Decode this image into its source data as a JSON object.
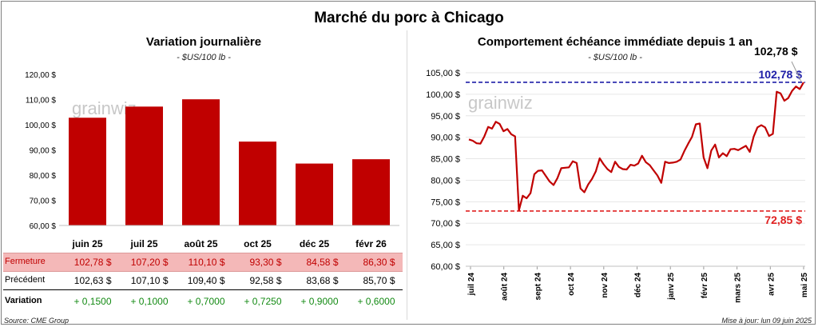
{
  "title": "Marché du porc à Chicago",
  "left": {
    "title": "Variation  journalière",
    "subtitle": "- $US/100 lb -",
    "watermark": "grainwiz",
    "chart_data": {
      "type": "bar",
      "categories": [
        "juin 25",
        "juil 25",
        "août 25",
        "oct 25",
        "déc 25",
        "févr 26"
      ],
      "values": [
        102.78,
        107.2,
        110.1,
        93.3,
        84.58,
        86.3
      ],
      "ylim": [
        60,
        120
      ],
      "yticks": [
        "60,00 $",
        "70,00 $",
        "80,00 $",
        "90,00 $",
        "100,00 $",
        "110,00 $",
        "120,00 $"
      ],
      "color": "#c00000"
    },
    "table": {
      "rows": [
        {
          "label": "Fermeture",
          "values": [
            "102,78  $",
            "107,20  $",
            "110,10  $",
            "93,30  $",
            "84,58  $",
            "86,30  $"
          ]
        },
        {
          "label": "Précédent",
          "values": [
            "102,63  $",
            "107,10  $",
            "109,40  $",
            "92,58  $",
            "83,68  $",
            "85,70  $"
          ]
        },
        {
          "label": "Variation",
          "values": [
            "+ 0,1500",
            "+ 0,1000",
            "+ 0,7000",
            "+ 0,7250",
            "+ 0,9000",
            "+ 0,6000"
          ]
        }
      ]
    }
  },
  "right": {
    "title": "Comportement  échéance immédiate depuis 1 an",
    "subtitle": "- $US/100 lb -",
    "watermark": "grainwiz",
    "last_value_label": "102,78 $",
    "chart_data": {
      "type": "line",
      "ylim": [
        60,
        105
      ],
      "yticks": [
        "60,00 $",
        "65,00 $",
        "70,00 $",
        "75,00 $",
        "80,00 $",
        "85,00 $",
        "90,00 $",
        "95,00 $",
        "100,00 $",
        "105,00 $"
      ],
      "xticks": [
        "juil 24",
        "août 24",
        "sept 24",
        "oct 24",
        "nov 24",
        "déc 24",
        "janv 25",
        "févr 25",
        "mars 25",
        "avr 25",
        "mai 25"
      ],
      "series": [
        {
          "color": "#c00000",
          "values": [
            89.5,
            89.2,
            88.6,
            88.5,
            90.2,
            92.4,
            92.0,
            93.6,
            93.1,
            91.4,
            91.9,
            90.7,
            90.2,
            73.0,
            76.4,
            75.8,
            77.0,
            81.4,
            82.2,
            82.3,
            81.0,
            79.7,
            78.9,
            80.5,
            82.8,
            82.9,
            83.0,
            84.4,
            84.0,
            78.1,
            77.2,
            79.0,
            80.3,
            82.1,
            85.1,
            83.7,
            82.6,
            81.9,
            84.3,
            83.1,
            82.6,
            82.5,
            83.6,
            83.4,
            83.9,
            85.7,
            84.2,
            83.5,
            82.3,
            81.1,
            79.4,
            84.3,
            84.0,
            84.1,
            84.3,
            84.8,
            86.8,
            88.5,
            90.1,
            93.0,
            93.2,
            85.3,
            82.8,
            86.9,
            88.3,
            85.3,
            86.3,
            85.6,
            87.2,
            87.3,
            87.0,
            87.5,
            88.0,
            86.6,
            90.1,
            92.3,
            92.8,
            92.3,
            90.3,
            90.8,
            100.6,
            100.2,
            98.5,
            99.1,
            100.8,
            101.8,
            101.2,
            102.78
          ]
        }
      ],
      "reference_lines": [
        {
          "value": 102.78,
          "label": "102,78 $",
          "color": "#1f1fa8"
        },
        {
          "value": 72.85,
          "label": "72,85 $",
          "color": "#e02020"
        }
      ]
    }
  },
  "footer": {
    "source": "Source: CME Group",
    "updated": "Mise à jour: lun 09 juin 2025"
  }
}
